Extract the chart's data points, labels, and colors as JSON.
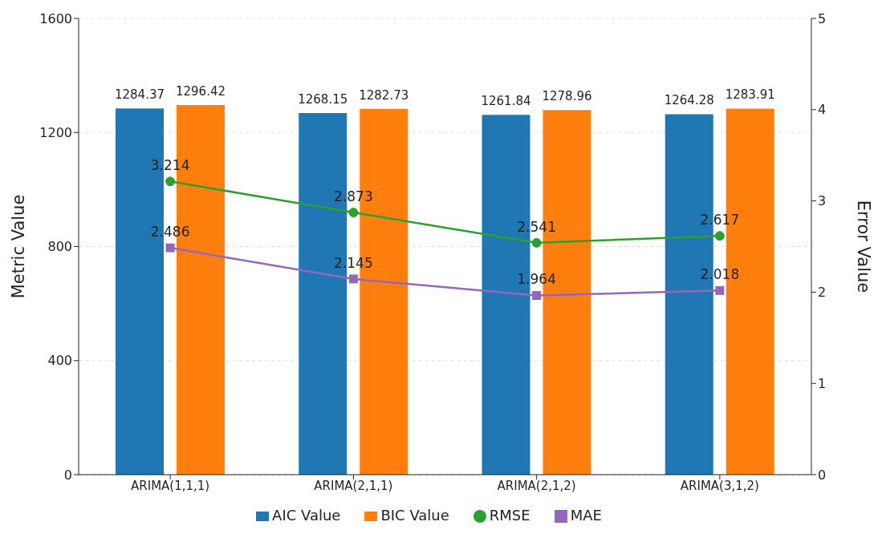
{
  "chart_data": {
    "type": "bar",
    "categories": [
      "ARIMA(1,1,1)",
      "ARIMA(2,1,1)",
      "ARIMA(2,1,2)",
      "ARIMA(3,1,2)"
    ],
    "ylabel": "Metric Value",
    "y2label": "Error Value",
    "ylim": [
      0,
      1600
    ],
    "yticks": [
      0,
      400,
      800,
      1200,
      1600
    ],
    "y2lim": [
      0,
      5
    ],
    "y2ticks": [
      0,
      1,
      2,
      3,
      4,
      5
    ],
    "grid": "y",
    "legend": "bottom",
    "data_labels": true,
    "series": [
      {
        "name": "AIC Value",
        "color": "#1f77b4",
        "values": [
          1284.37,
          1268.15,
          1261.84,
          1264.28
        ]
      },
      {
        "name": "BIC Value",
        "color": "#ff7f0e",
        "values": [
          1296.42,
          1282.73,
          1278.96,
          1283.91
        ]
      },
      {
        "name": "RMSE",
        "type": "line",
        "axis": "y2",
        "marker": "circle",
        "line_style": "solid",
        "color": "#2ca02c",
        "values": [
          3.214,
          2.873,
          2.541,
          2.617
        ]
      },
      {
        "name": "MAE",
        "type": "line",
        "axis": "y2",
        "marker": "square",
        "line_style": "solid",
        "color": "#9467bd",
        "values": [
          2.486,
          2.145,
          1.964,
          2.018
        ]
      }
    ]
  }
}
